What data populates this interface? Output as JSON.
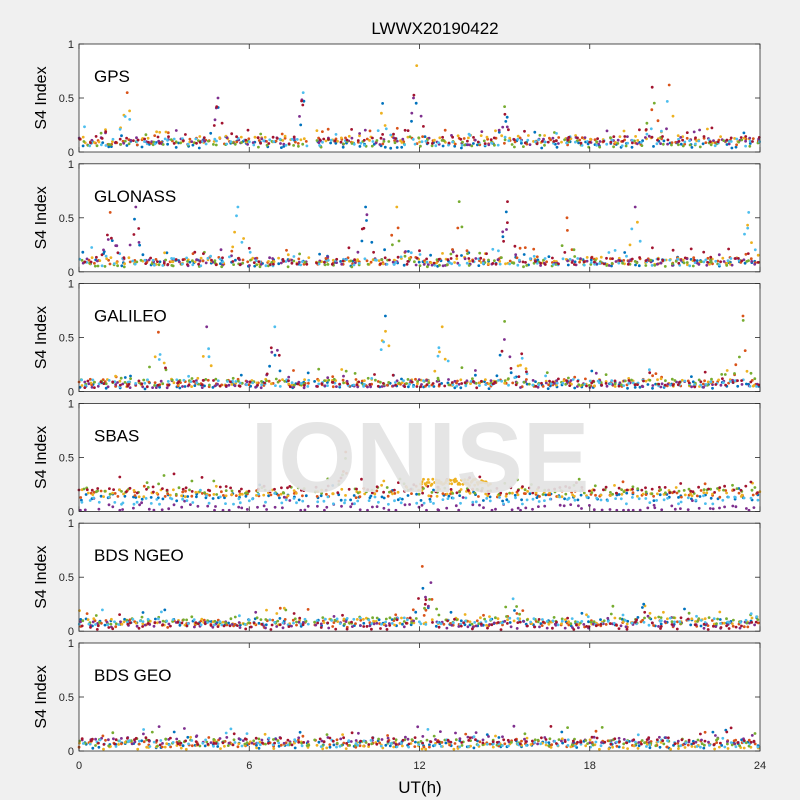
{
  "figure": {
    "title": "LWWX20190422",
    "xlabel": "UT(h)",
    "watermark": "IONISE"
  },
  "colors": {
    "background": "#f0f0f0",
    "axes_bg": "#ffffff",
    "palette": [
      "#0072bd",
      "#d95319",
      "#edb120",
      "#7e2f8e",
      "#77ac30",
      "#4dbeee",
      "#a2142f"
    ]
  },
  "chart_data": [
    {
      "type": "scatter",
      "label": "GPS",
      "ylabel": "S4 Index",
      "ylim": [
        0,
        1
      ],
      "xlim": [
        0,
        24
      ],
      "yticks": [
        "0",
        "0.5",
        "1"
      ],
      "xticks": [],
      "data_gap": [
        8.1,
        8.3
      ],
      "series_baselines": [
        0.07,
        0.1,
        0.12,
        0.1,
        0.08,
        0.09,
        0.11
      ],
      "peaks": [
        {
          "x": 1.7,
          "y": 0.55
        },
        {
          "x": 4.9,
          "y": 0.5
        },
        {
          "x": 7.9,
          "y": 0.55
        },
        {
          "x": 10.7,
          "y": 0.45
        },
        {
          "x": 11.9,
          "y": 0.8
        },
        {
          "x": 15.0,
          "y": 0.42
        },
        {
          "x": 20.2,
          "y": 0.6
        },
        {
          "x": 20.8,
          "y": 0.62
        }
      ]
    },
    {
      "type": "scatter",
      "label": "GLONASS",
      "ylabel": "S4 Index",
      "ylim": [
        0,
        1
      ],
      "xlim": [
        0,
        24
      ],
      "yticks": [
        "0",
        "0.5",
        "1"
      ],
      "xticks": [],
      "data_gap": [
        8.1,
        8.3
      ],
      "series_baselines": [
        0.08,
        0.1,
        0.1,
        0.09,
        0.08,
        0.09,
        0.1
      ],
      "peaks": [
        {
          "x": 1.1,
          "y": 0.55
        },
        {
          "x": 2.0,
          "y": 0.6
        },
        {
          "x": 5.6,
          "y": 0.6
        },
        {
          "x": 10.1,
          "y": 0.6
        },
        {
          "x": 11.2,
          "y": 0.6
        },
        {
          "x": 13.4,
          "y": 0.65
        },
        {
          "x": 15.1,
          "y": 0.65
        },
        {
          "x": 17.2,
          "y": 0.5
        },
        {
          "x": 19.6,
          "y": 0.6
        },
        {
          "x": 23.6,
          "y": 0.55
        }
      ]
    },
    {
      "type": "scatter",
      "label": "GALILEO",
      "ylabel": "S4 Index",
      "ylim": [
        0,
        1
      ],
      "xlim": [
        0,
        24
      ],
      "yticks": [
        "0",
        "0.5",
        "1"
      ],
      "xticks": [],
      "data_gap": [
        8.1,
        8.3
      ],
      "series_baselines": [
        0.06,
        0.08,
        0.08,
        0.07,
        0.09,
        0.08,
        0.07
      ],
      "peaks": [
        {
          "x": 2.8,
          "y": 0.55
        },
        {
          "x": 4.5,
          "y": 0.6
        },
        {
          "x": 6.9,
          "y": 0.6
        },
        {
          "x": 10.8,
          "y": 0.7
        },
        {
          "x": 12.8,
          "y": 0.6
        },
        {
          "x": 15.0,
          "y": 0.65
        },
        {
          "x": 15.6,
          "y": 0.35
        },
        {
          "x": 23.4,
          "y": 0.7
        }
      ]
    },
    {
      "type": "scatter",
      "label": "SBAS",
      "ylabel": "S4 Index",
      "ylim": [
        0,
        1
      ],
      "xlim": [
        0,
        24
      ],
      "yticks": [
        "0",
        "0.5",
        "1"
      ],
      "xticks": [],
      "data_gap": [
        8.1,
        8.3
      ],
      "series_baselines": [
        0.13,
        0.16,
        0.17,
        0.03,
        0.19,
        0.1,
        0.2
      ],
      "peaks": [
        {
          "x": 9.4,
          "y": 0.55
        }
      ],
      "elevated_band": {
        "start": 12.0,
        "end": 14.5,
        "y": 0.27
      }
    },
    {
      "type": "scatter",
      "label": "BDS NGEO",
      "ylabel": "S4 Index",
      "ylim": [
        0,
        1
      ],
      "xlim": [
        0,
        24
      ],
      "yticks": [
        "0",
        "0.5",
        "1"
      ],
      "xticks": [],
      "data_gap": [
        8.1,
        8.3
      ],
      "series_baselines": [
        0.08,
        0.07,
        0.09,
        0.06,
        0.1,
        0.09,
        0.05
      ],
      "peaks": [
        {
          "x": 12.1,
          "y": 0.6
        },
        {
          "x": 12.4,
          "y": 0.45
        },
        {
          "x": 15.3,
          "y": 0.3
        },
        {
          "x": 19.9,
          "y": 0.25
        }
      ]
    },
    {
      "type": "scatter",
      "label": "BDS GEO",
      "ylabel": "S4 Index",
      "ylim": [
        0,
        1
      ],
      "xlim": [
        0,
        24
      ],
      "yticks": [
        "0",
        "0.5",
        "1"
      ],
      "xticks": [
        "0",
        "6",
        "12",
        "18",
        "24"
      ],
      "data_gap": [
        8.1,
        8.3
      ],
      "series_baselines": [
        0.06,
        0.07,
        0.05,
        0.1,
        0.08,
        0.07,
        0.09
      ],
      "peaks": []
    }
  ]
}
